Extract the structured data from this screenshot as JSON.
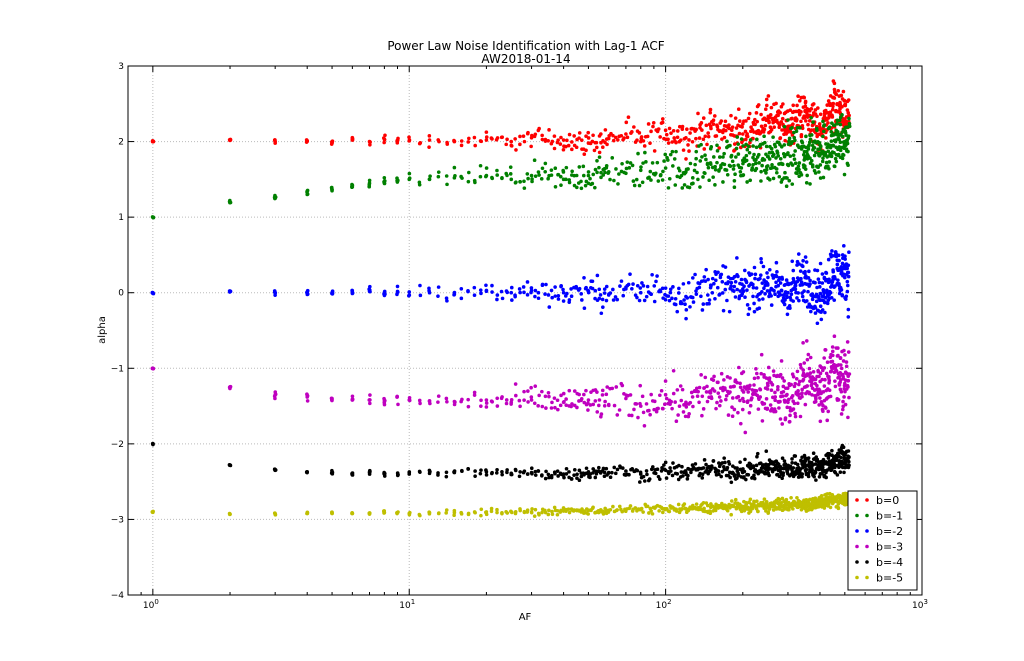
{
  "chart_data": {
    "type": "scatter",
    "title": "Power Law Noise Identification with Lag-1 ACF",
    "subtitle": "AW2018-01-14",
    "xlabel": "AF",
    "ylabel": "alpha",
    "xscale": "log",
    "xlim": [
      0.8,
      1000
    ],
    "ylim": [
      -4,
      3
    ],
    "grid": true,
    "legend_position": "bottom-right",
    "x_ticks": [
      {
        "value": 1,
        "base": "10",
        "exp": "0"
      },
      {
        "value": 10,
        "base": "10",
        "exp": "1"
      },
      {
        "value": 100,
        "base": "10",
        "exp": "2"
      },
      {
        "value": 1000,
        "base": "10",
        "exp": "3"
      }
    ],
    "y_ticks": [
      {
        "value": 3,
        "label": "3"
      },
      {
        "value": 2,
        "label": "2"
      },
      {
        "value": 1,
        "label": "1"
      },
      {
        "value": 0,
        "label": "0"
      },
      {
        "value": -1,
        "label": "−1"
      },
      {
        "value": -2,
        "label": "−2"
      },
      {
        "value": -3,
        "label": "−3"
      },
      {
        "value": -4,
        "label": "−4"
      }
    ],
    "series": [
      {
        "name": "b=0",
        "color": "#ff0000",
        "points": [
          [
            1,
            2.0
          ],
          [
            2,
            2.02
          ],
          [
            3,
            2.0
          ],
          [
            4,
            2.01
          ],
          [
            5,
            1.99
          ],
          [
            6,
            2.02
          ],
          [
            7,
            2.0
          ],
          [
            8,
            2.03
          ],
          [
            10,
            2.01
          ],
          [
            12,
            2.02
          ],
          [
            15,
            2.0
          ],
          [
            20,
            2.02
          ],
          [
            25,
            2.0
          ],
          [
            30,
            2.05
          ],
          [
            40,
            2.02
          ],
          [
            50,
            1.98
          ],
          [
            60,
            2.04
          ],
          [
            70,
            2.1
          ],
          [
            80,
            2.0
          ],
          [
            100,
            2.15
          ],
          [
            120,
            2.05
          ],
          [
            150,
            2.2
          ],
          [
            200,
            2.1
          ],
          [
            250,
            2.3
          ],
          [
            300,
            2.2
          ],
          [
            350,
            2.4
          ],
          [
            400,
            2.1
          ],
          [
            450,
            2.5
          ],
          [
            500,
            2.3
          ]
        ]
      },
      {
        "name": "b=-1",
        "color": "#008000",
        "points": [
          [
            1,
            1.0
          ],
          [
            2,
            1.2
          ],
          [
            3,
            1.25
          ],
          [
            4,
            1.3
          ],
          [
            5,
            1.35
          ],
          [
            6,
            1.4
          ],
          [
            7,
            1.45
          ],
          [
            8,
            1.45
          ],
          [
            10,
            1.5
          ],
          [
            12,
            1.5
          ],
          [
            15,
            1.52
          ],
          [
            20,
            1.55
          ],
          [
            25,
            1.5
          ],
          [
            30,
            1.55
          ],
          [
            40,
            1.5
          ],
          [
            50,
            1.55
          ],
          [
            60,
            1.6
          ],
          [
            70,
            1.58
          ],
          [
            80,
            1.62
          ],
          [
            100,
            1.65
          ],
          [
            120,
            1.6
          ],
          [
            150,
            1.7
          ],
          [
            200,
            1.75
          ],
          [
            250,
            1.8
          ],
          [
            300,
            1.85
          ],
          [
            350,
            1.8
          ],
          [
            400,
            1.9
          ],
          [
            450,
            1.95
          ],
          [
            500,
            2.0
          ]
        ]
      },
      {
        "name": "b=-2",
        "color": "#0000ff",
        "points": [
          [
            1,
            0.0
          ],
          [
            2,
            0.02
          ],
          [
            3,
            0.0
          ],
          [
            4,
            0.01
          ],
          [
            5,
            0.0
          ],
          [
            6,
            -0.01
          ],
          [
            7,
            0.02
          ],
          [
            8,
            0.0
          ],
          [
            10,
            0.01
          ],
          [
            12,
            0.0
          ],
          [
            15,
            -0.02
          ],
          [
            20,
            0.02
          ],
          [
            25,
            0.0
          ],
          [
            30,
            0.03
          ],
          [
            40,
            0.0
          ],
          [
            50,
            0.02
          ],
          [
            60,
            -0.03
          ],
          [
            70,
            0.05
          ],
          [
            80,
            0.0
          ],
          [
            100,
            0.06
          ],
          [
            120,
            -0.05
          ],
          [
            150,
            0.1
          ],
          [
            200,
            0.05
          ],
          [
            250,
            0.12
          ],
          [
            300,
            0.0
          ],
          [
            350,
            0.2
          ],
          [
            400,
            -0.1
          ],
          [
            450,
            0.3
          ],
          [
            500,
            0.2
          ]
        ]
      },
      {
        "name": "b=-3",
        "color": "#bf00bf",
        "points": [
          [
            1,
            -1.0
          ],
          [
            2,
            -1.25
          ],
          [
            3,
            -1.35
          ],
          [
            4,
            -1.38
          ],
          [
            5,
            -1.4
          ],
          [
            6,
            -1.42
          ],
          [
            7,
            -1.42
          ],
          [
            8,
            -1.43
          ],
          [
            10,
            -1.42
          ],
          [
            12,
            -1.43
          ],
          [
            15,
            -1.44
          ],
          [
            20,
            -1.42
          ],
          [
            25,
            -1.45
          ],
          [
            30,
            -1.42
          ],
          [
            40,
            -1.45
          ],
          [
            50,
            -1.42
          ],
          [
            60,
            -1.48
          ],
          [
            70,
            -1.4
          ],
          [
            80,
            -1.5
          ],
          [
            100,
            -1.35
          ],
          [
            120,
            -1.45
          ],
          [
            150,
            -1.3
          ],
          [
            200,
            -1.4
          ],
          [
            250,
            -1.2
          ],
          [
            300,
            -1.45
          ],
          [
            350,
            -1.1
          ],
          [
            400,
            -1.3
          ],
          [
            450,
            -1.0
          ],
          [
            500,
            -1.2
          ]
        ]
      },
      {
        "name": "b=-4",
        "color": "#000000",
        "points": [
          [
            1,
            -2.0
          ],
          [
            2,
            -2.28
          ],
          [
            3,
            -2.34
          ],
          [
            4,
            -2.37
          ],
          [
            5,
            -2.38
          ],
          [
            6,
            -2.39
          ],
          [
            7,
            -2.38
          ],
          [
            8,
            -2.4
          ],
          [
            10,
            -2.38
          ],
          [
            12,
            -2.39
          ],
          [
            15,
            -2.38
          ],
          [
            20,
            -2.37
          ],
          [
            25,
            -2.39
          ],
          [
            30,
            -2.38
          ],
          [
            40,
            -2.4
          ],
          [
            50,
            -2.37
          ],
          [
            60,
            -2.38
          ],
          [
            70,
            -2.36
          ],
          [
            80,
            -2.4
          ],
          [
            100,
            -2.35
          ],
          [
            120,
            -2.38
          ],
          [
            150,
            -2.33
          ],
          [
            200,
            -2.36
          ],
          [
            250,
            -2.3
          ],
          [
            300,
            -2.34
          ],
          [
            350,
            -2.28
          ],
          [
            400,
            -2.32
          ],
          [
            450,
            -2.25
          ],
          [
            500,
            -2.2
          ]
        ]
      },
      {
        "name": "b=-5",
        "color": "#bfbf00",
        "points": [
          [
            1,
            -2.9
          ],
          [
            2,
            -2.93
          ],
          [
            3,
            -2.93
          ],
          [
            4,
            -2.92
          ],
          [
            5,
            -2.92
          ],
          [
            6,
            -2.92
          ],
          [
            7,
            -2.92
          ],
          [
            8,
            -2.91
          ],
          [
            10,
            -2.92
          ],
          [
            12,
            -2.91
          ],
          [
            15,
            -2.91
          ],
          [
            20,
            -2.9
          ],
          [
            25,
            -2.9
          ],
          [
            30,
            -2.9
          ],
          [
            40,
            -2.89
          ],
          [
            50,
            -2.88
          ],
          [
            60,
            -2.88
          ],
          [
            70,
            -2.87
          ],
          [
            80,
            -2.87
          ],
          [
            100,
            -2.86
          ],
          [
            120,
            -2.86
          ],
          [
            150,
            -2.84
          ],
          [
            200,
            -2.83
          ],
          [
            250,
            -2.82
          ],
          [
            300,
            -2.8
          ],
          [
            350,
            -2.8
          ],
          [
            400,
            -2.78
          ],
          [
            450,
            -2.75
          ],
          [
            500,
            -2.72
          ]
        ]
      }
    ]
  }
}
